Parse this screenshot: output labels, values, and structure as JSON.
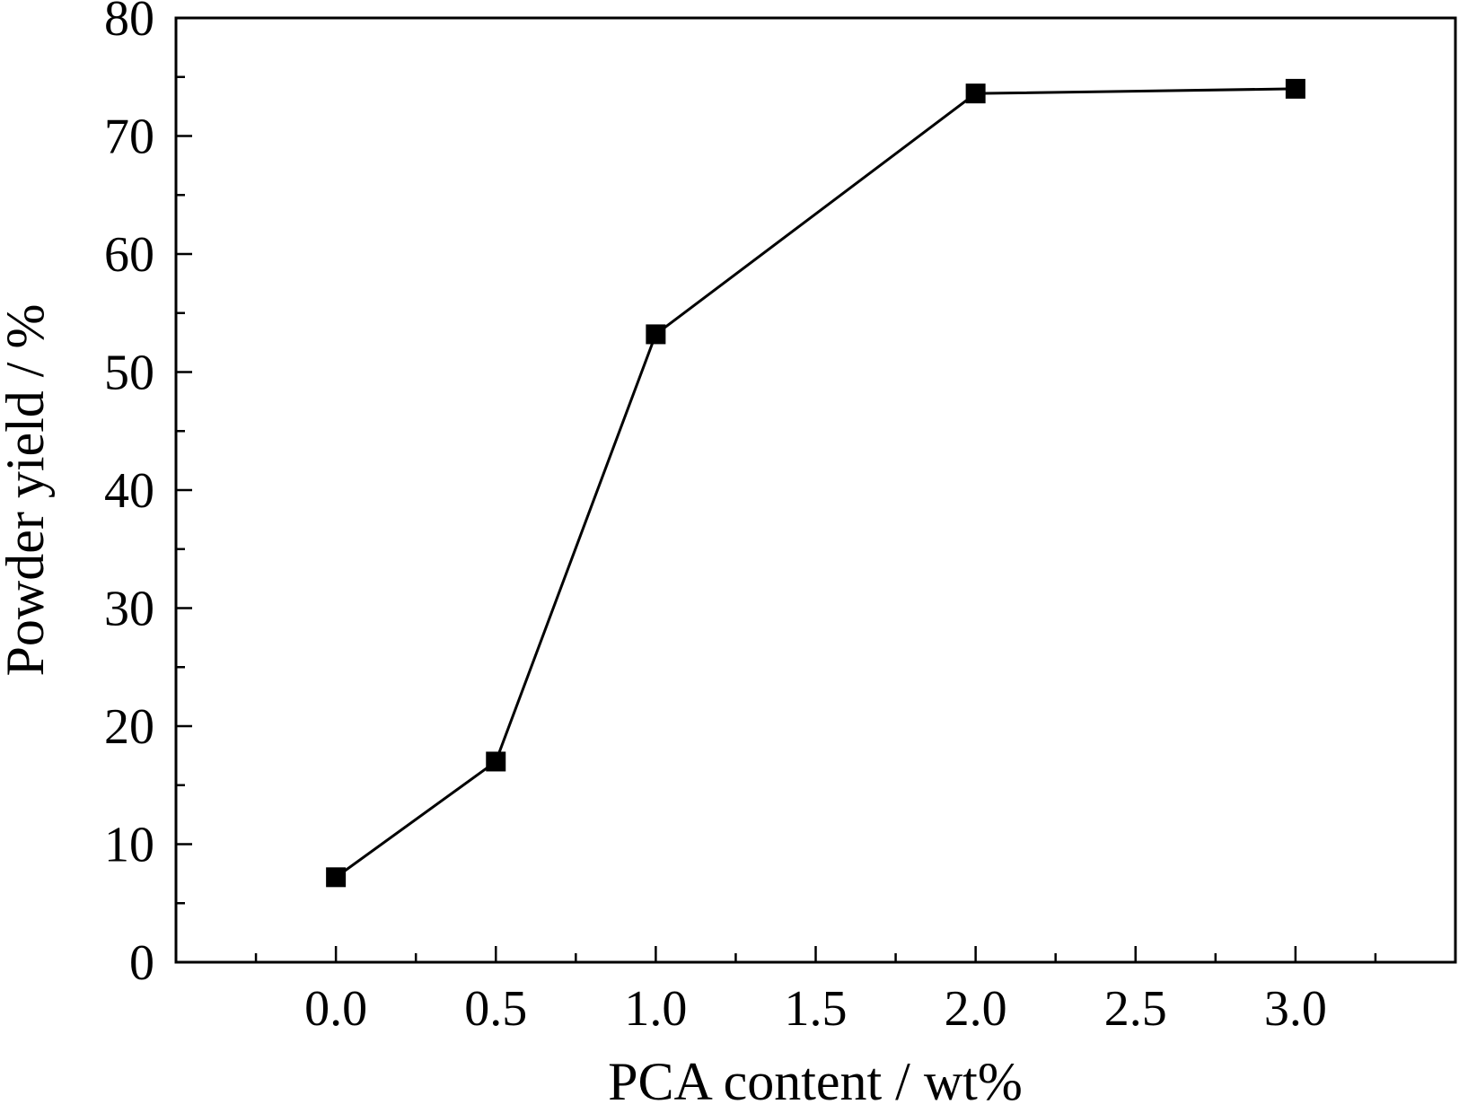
{
  "chart_data": {
    "type": "line",
    "title": "",
    "xlabel": "PCA content / wt%",
    "ylabel": "Powder yield / %",
    "xlim": [
      -0.5,
      3.5
    ],
    "ylim": [
      0,
      80
    ],
    "x_ticks": [
      "0.0",
      "0.5",
      "1.0",
      "1.5",
      "2.0",
      "2.5",
      "3.0"
    ],
    "y_ticks": [
      "0",
      "10",
      "20",
      "30",
      "40",
      "50",
      "60",
      "70",
      "80"
    ],
    "grid": false,
    "legend": "none",
    "series": [
      {
        "marker": "square",
        "color": "#000000",
        "x": [
          0.0,
          0.5,
          1.0,
          2.0,
          3.0
        ],
        "y": [
          7.2,
          17.0,
          53.2,
          73.6,
          74.0
        ]
      }
    ]
  }
}
